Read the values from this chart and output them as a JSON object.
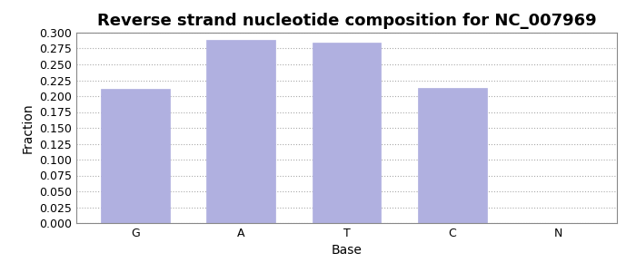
{
  "title": "Reverse strand nucleotide composition for NC_007969",
  "categories": [
    "G",
    "A",
    "T",
    "C",
    "N"
  ],
  "values": [
    0.211,
    0.288,
    0.285,
    0.213,
    0.0
  ],
  "bar_color": "#b0b0e0",
  "bar_edgecolor": "#b0b0e0",
  "xlabel": "Base",
  "ylabel": "Fraction",
  "ylim": [
    0.0,
    0.3
  ],
  "ytick_step": 0.025,
  "title_fontsize": 13,
  "axis_fontsize": 10,
  "tick_fontsize": 9,
  "background_color": "#ffffff",
  "plot_bg_color": "#ffffff",
  "grid_color": "#aaaaaa",
  "grid_style": ":"
}
